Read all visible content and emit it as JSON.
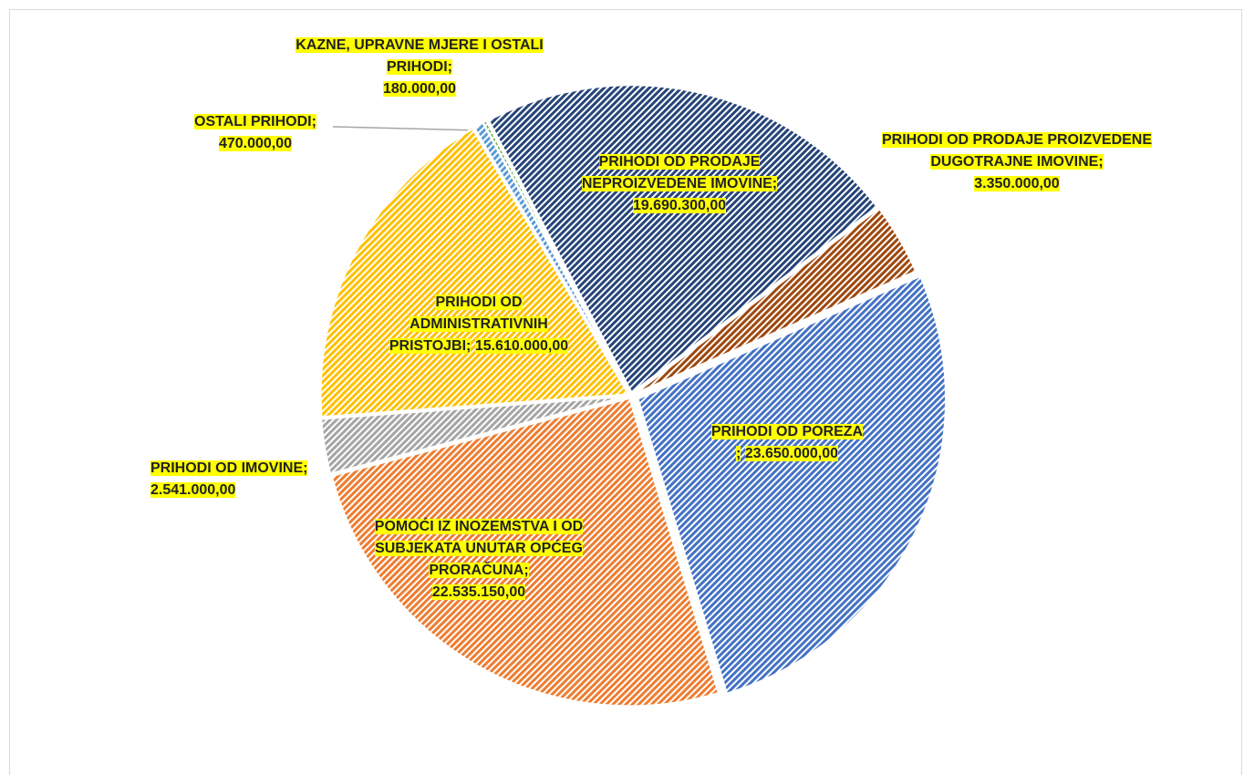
{
  "chart_data": {
    "type": "pie",
    "categories": [
      "PRIHODI OD POREZA",
      "POMOĆI IZ INOZEMSTVA I OD SUBJEKATA UNUTAR OPĆEG PRORAČUNA",
      "PRIHODI OD IMOVINE",
      "PRIHODI OD ADMINISTRATIVNIH PRISTOJBI",
      "OSTALI PRIHODI",
      "KAZNE, UPRAVNE MJERE I OSTALI PRIHODI",
      "PRIHODI OD PRODAJE NEPROIZVEDENE IMOVINE",
      "PRIHODI OD PRODAJE PROIZVEDENE DUGOTRAJNE IMOVINE"
    ],
    "values": [
      23650000,
      22535150,
      2541000,
      15610000,
      470000,
      180000,
      19690300,
      3350000
    ],
    "value_labels": [
      "23.650.000,00",
      "22.535.150,00",
      "2.541.000,00",
      "15.610.000,00",
      "470.000,00",
      "180.000,00",
      "19.690.300,00",
      "3.350.000,00"
    ],
    "label_separator": ";",
    "colors": [
      "#4472c4",
      "#ed7d31",
      "#a5a5a5",
      "#ffc000",
      "#5b9bd5",
      "#70ad47",
      "#264478",
      "#9e480e"
    ]
  }
}
